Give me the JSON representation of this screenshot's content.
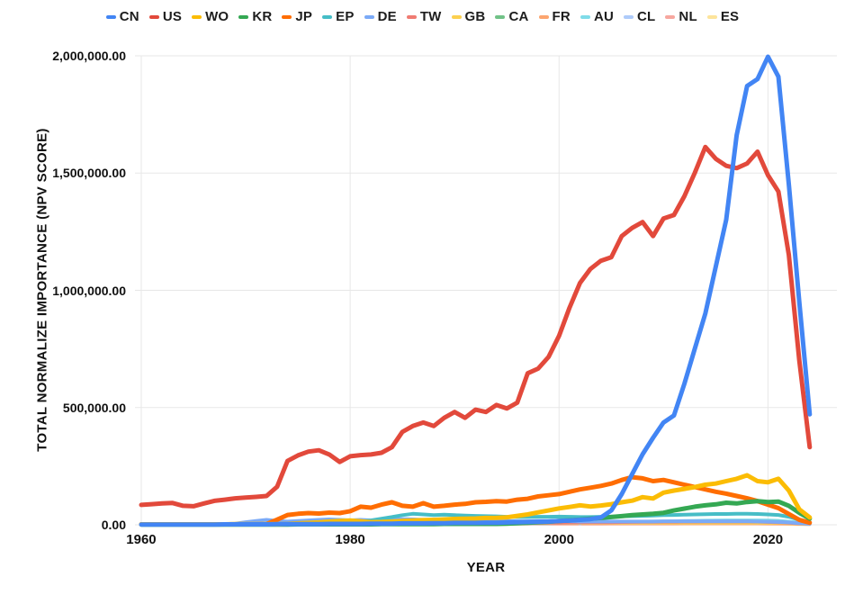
{
  "chart_data": {
    "type": "line",
    "title": "",
    "xlabel": "YEAR",
    "ylabel": "TOTAL NORMALIZE IMPORTANCE (NPV SCORE)",
    "legend_position": "top",
    "grid": true,
    "ylim": [
      0,
      2000000
    ],
    "xlim": [
      1959.4,
      2026.6
    ],
    "x_ticks": [
      {
        "value": 1960,
        "label": "1960"
      },
      {
        "value": 1980,
        "label": "1980"
      },
      {
        "value": 2000,
        "label": "2000"
      },
      {
        "value": 2020,
        "label": "2020"
      }
    ],
    "y_ticks": [
      {
        "value": 0,
        "label": "0.00"
      },
      {
        "value": 500000,
        "label": "500,000.00"
      },
      {
        "value": 1000000,
        "label": "1,000,000.00"
      },
      {
        "value": 1500000,
        "label": "1,500,000.00"
      },
      {
        "value": 2000000,
        "label": "2,000,000.00"
      }
    ],
    "x": [
      1960,
      1961,
      1962,
      1963,
      1964,
      1965,
      1966,
      1967,
      1968,
      1969,
      1970,
      1971,
      1972,
      1973,
      1974,
      1975,
      1976,
      1977,
      1978,
      1979,
      1980,
      1981,
      1982,
      1983,
      1984,
      1985,
      1986,
      1987,
      1988,
      1989,
      1990,
      1991,
      1992,
      1993,
      1994,
      1995,
      1996,
      1997,
      1998,
      1999,
      2000,
      2001,
      2002,
      2003,
      2004,
      2005,
      2006,
      2007,
      2008,
      2009,
      2010,
      2011,
      2012,
      2013,
      2014,
      2015,
      2016,
      2017,
      2018,
      2019,
      2020,
      2021,
      2022,
      2023,
      2024
    ],
    "series": [
      {
        "name": "CN",
        "color": "#4285F4",
        "width": 5,
        "values": [
          1000,
          1000,
          1000,
          1000,
          1000,
          1000,
          1000,
          1000,
          2000,
          2000,
          2000,
          2000,
          2000,
          3000,
          3000,
          3000,
          3000,
          3000,
          4000,
          4000,
          4000,
          4000,
          5000,
          5000,
          5000,
          6000,
          6000,
          6000,
          7000,
          7000,
          8000,
          8000,
          8000,
          9000,
          9000,
          10000,
          11000,
          12000,
          13000,
          14000,
          16000,
          18000,
          21000,
          24000,
          31000,
          61000,
          131000,
          216000,
          301000,
          371000,
          436000,
          466000,
          601000,
          751000,
          901000,
          1101000,
          1301000,
          1661000,
          1871000,
          1901000,
          1996000,
          1911000,
          1451000,
          951000,
          471000
        ]
      },
      {
        "name": "US",
        "color": "#E2493B",
        "width": 5,
        "values": [
          85000,
          88000,
          91000,
          93000,
          81000,
          79000,
          91000,
          102000,
          107000,
          113000,
          116000,
          119000,
          123000,
          162000,
          272000,
          296000,
          312000,
          318000,
          300000,
          268000,
          292000,
          297000,
          300000,
          307000,
          331000,
          396000,
          421000,
          436000,
          421000,
          456000,
          481000,
          456000,
          491000,
          481000,
          511000,
          496000,
          521000,
          646000,
          666000,
          716000,
          806000,
          926000,
          1031000,
          1091000,
          1126000,
          1141000,
          1231000,
          1266000,
          1291000,
          1231000,
          1306000,
          1321000,
          1401000,
          1501000,
          1611000,
          1561000,
          1531000,
          1521000,
          1541000,
          1591000,
          1491000,
          1421000,
          1151000,
          701000,
          331000
        ]
      },
      {
        "name": "WO",
        "color": "#FBBC04",
        "width": 5,
        "values": [
          2000,
          2000,
          2000,
          2000,
          2000,
          2000,
          2000,
          2000,
          2000,
          3000,
          3000,
          3000,
          3000,
          3000,
          4000,
          6000,
          8000,
          10000,
          14000,
          16000,
          18000,
          15000,
          11000,
          12000,
          14000,
          16000,
          18000,
          20000,
          21000,
          23000,
          25000,
          26000,
          27000,
          29000,
          30000,
          32000,
          38000,
          44000,
          53000,
          61000,
          70000,
          76000,
          83000,
          78000,
          82000,
          88000,
          96000,
          103000,
          118000,
          112000,
          137000,
          146000,
          153000,
          161000,
          171000,
          176000,
          186000,
          196000,
          211000,
          186000,
          181000,
          196000,
          146000,
          66000,
          31000
        ]
      },
      {
        "name": "KR",
        "color": "#34A853",
        "width": 5,
        "values": [
          1000,
          1000,
          1000,
          1000,
          1000,
          1000,
          1000,
          1000,
          1000,
          1000,
          1000,
          1000,
          1000,
          1000,
          1000,
          2000,
          2000,
          2000,
          2000,
          2000,
          2000,
          2000,
          2000,
          3000,
          3000,
          3000,
          3000,
          3000,
          3000,
          4000,
          4000,
          4000,
          4000,
          4000,
          4000,
          5000,
          7000,
          9000,
          11000,
          13000,
          16000,
          19000,
          22000,
          26000,
          29000,
          33000,
          37000,
          41000,
          44000,
          47000,
          51000,
          61000,
          69000,
          77000,
          83000,
          87000,
          94000,
          91000,
          97000,
          101000,
          97000,
          99000,
          81000,
          51000,
          26000
        ]
      },
      {
        "name": "JP",
        "color": "#FF6D01",
        "width": 5,
        "values": [
          2000,
          2000,
          2000,
          2000,
          2000,
          2000,
          2000,
          2000,
          2000,
          2000,
          2000,
          2000,
          3000,
          22000,
          42000,
          47000,
          50000,
          48000,
          52000,
          50000,
          58000,
          77000,
          73000,
          86000,
          96000,
          81000,
          77000,
          92000,
          77000,
          81000,
          86000,
          89000,
          96000,
          98000,
          101000,
          99000,
          107000,
          111000,
          121000,
          126000,
          131000,
          141000,
          151000,
          158000,
          166000,
          176000,
          191000,
          203000,
          198000,
          186000,
          191000,
          181000,
          171000,
          161000,
          151000,
          141000,
          133000,
          123000,
          113000,
          101000,
          86000,
          71000,
          46000,
          21000,
          9000
        ]
      },
      {
        "name": "EP",
        "color": "#46BDC6",
        "width": 4,
        "values": [
          0,
          0,
          0,
          0,
          0,
          0,
          0,
          0,
          0,
          0,
          0,
          0,
          0,
          0,
          0,
          0,
          0,
          0,
          1000,
          4000,
          9000,
          14000,
          19000,
          26000,
          33000,
          41000,
          47000,
          44000,
          41000,
          43000,
          41000,
          39000,
          38000,
          37000,
          36000,
          34000,
          33000,
          33000,
          34000,
          34000,
          35000,
          34000,
          33000,
          33000,
          34000,
          35000,
          36000,
          37000,
          38000,
          39000,
          41000,
          42000,
          43000,
          44000,
          45000,
          46000,
          46000,
          47000,
          47000,
          46000,
          44000,
          42000,
          34000,
          21000,
          11000
        ]
      },
      {
        "name": "DE",
        "color": "#7BAAF7",
        "width": 4,
        "values": [
          1000,
          1000,
          1000,
          1000,
          1000,
          1000,
          1000,
          2000,
          3000,
          5000,
          11000,
          16000,
          21000,
          16000,
          14000,
          16000,
          19000,
          21000,
          23000,
          21000,
          19000,
          21000,
          19000,
          21000,
          23000,
          24000,
          23000,
          21000,
          20000,
          19000,
          21000,
          19000,
          18000,
          17000,
          16000,
          16000,
          15000,
          15000,
          16000,
          16000,
          16000,
          15000,
          14000,
          14000,
          14000,
          14000,
          14000,
          14000,
          14000,
          14000,
          15000,
          15000,
          15000,
          15000,
          15000,
          15000,
          15000,
          15000,
          15000,
          14000,
          13000,
          12000,
          10000,
          7000,
          4000
        ]
      },
      {
        "name": "TW",
        "color": "#F07B72",
        "width": 3,
        "values": [
          500,
          500,
          500,
          500,
          500,
          500,
          500,
          500,
          500,
          500,
          500,
          500,
          500,
          500,
          500,
          500,
          500,
          500,
          500,
          500,
          500,
          500,
          500,
          1000,
          1000,
          1000,
          1000,
          1000,
          1500,
          1500,
          2000,
          2500,
          3000,
          3500,
          4000,
          4000,
          5000,
          5500,
          6000,
          6500,
          7000,
          7500,
          8000,
          8500,
          9000,
          9000,
          9500,
          10000,
          10500,
          10500,
          11000,
          11000,
          11500,
          11500,
          12000,
          12000,
          12000,
          12000,
          12000,
          11500,
          10000,
          9000,
          7000,
          4000,
          3000
        ]
      },
      {
        "name": "GB",
        "color": "#FCD04F",
        "width": 3,
        "values": [
          2000,
          2000,
          2000,
          2000,
          2000,
          2000,
          2000,
          2000,
          2500,
          2500,
          3000,
          3500,
          4000,
          6000,
          8000,
          9000,
          11000,
          13000,
          16000,
          14000,
          16000,
          13000,
          9000,
          11000,
          9000,
          8000,
          8000,
          8000,
          7000,
          7000,
          7000,
          7000,
          7000,
          7000,
          7000,
          7000,
          7000,
          7000,
          7000,
          7000,
          7000,
          7000,
          7000,
          7000,
          7000,
          7000,
          7000,
          7000,
          7000,
          7000,
          7000,
          7000,
          7000,
          7000,
          7000,
          7000,
          7000,
          7000,
          7000,
          7000,
          6000,
          6000,
          5000,
          3000,
          2000
        ]
      },
      {
        "name": "CA",
        "color": "#71C287",
        "width": 3,
        "values": [
          1000,
          1000,
          1000,
          1000,
          1000,
          1000,
          1000,
          1000,
          1000,
          1000,
          1000,
          1000,
          1000,
          1000,
          1500,
          1500,
          1500,
          2000,
          2000,
          2000,
          2000,
          2500,
          2500,
          3000,
          3000,
          3500,
          3500,
          4000,
          4000,
          4000,
          4000,
          4500,
          5000,
          5500,
          6000,
          6500,
          7000,
          7000,
          7500,
          8000,
          8000,
          8500,
          9000,
          9500,
          10000,
          10500,
          11000,
          11500,
          12000,
          12500,
          13000,
          13500,
          14000,
          14500,
          15000,
          15000,
          15500,
          16000,
          16000,
          15000,
          14500,
          14000,
          11000,
          7000,
          4000
        ]
      },
      {
        "name": "FR",
        "color": "#FCA56F",
        "width": 3,
        "values": [
          1000,
          1000,
          1000,
          1000,
          1000,
          1000,
          1500,
          1500,
          2000,
          2500,
          3000,
          3500,
          4000,
          5000,
          6000,
          6000,
          6500,
          7000,
          7500,
          7500,
          8000,
          8500,
          8500,
          9000,
          9000,
          9000,
          9000,
          9000,
          9000,
          9000,
          9000,
          9000,
          8500,
          8500,
          8000,
          8000,
          8000,
          8000,
          8000,
          8000,
          8000,
          8000,
          8000,
          8000,
          8000,
          8000,
          8000,
          8000,
          8000,
          8000,
          8000,
          8000,
          8000,
          8000,
          8000,
          8000,
          8000,
          8000,
          7500,
          7500,
          7000,
          6500,
          5000,
          3000,
          2000
        ]
      },
      {
        "name": "AU",
        "color": "#7FDBE8",
        "width": 4,
        "values": [
          500,
          500,
          500,
          500,
          500,
          500,
          500,
          500,
          500,
          500,
          500,
          500,
          500,
          500,
          1000,
          1000,
          1000,
          1000,
          1000,
          1000,
          1000,
          1500,
          1500,
          2000,
          2000,
          2500,
          3000,
          3000,
          3000,
          3000,
          3000,
          3500,
          4000,
          4500,
          5000,
          5000,
          5500,
          6000,
          6500,
          7000,
          8000,
          8500,
          9000,
          9500,
          10000,
          11000,
          12000,
          12500,
          13000,
          14000,
          14000,
          15000,
          16000,
          17000,
          17500,
          18000,
          19000,
          19000,
          19000,
          19000,
          18000,
          17000,
          13000,
          9000,
          5000
        ]
      },
      {
        "name": "CL",
        "color": "#AECBFA",
        "width": 3,
        "values": [
          null,
          null,
          null,
          null,
          null,
          null,
          null,
          null,
          null,
          null,
          null,
          null,
          null,
          null,
          null,
          null,
          null,
          null,
          null,
          null,
          null,
          null,
          null,
          null,
          null,
          null,
          null,
          null,
          null,
          null,
          null,
          null,
          null,
          null,
          null,
          null,
          null,
          null,
          null,
          null,
          null,
          null,
          13000,
          null,
          null,
          null,
          null,
          null,
          null,
          null,
          null,
          null,
          null,
          null,
          null,
          null,
          null,
          null,
          null,
          null,
          null,
          null,
          null,
          null,
          null
        ]
      },
      {
        "name": "NL",
        "color": "#F7A79F",
        "width": 3,
        "values": [
          500,
          500,
          500,
          500,
          500,
          500,
          500,
          500,
          500,
          500,
          1000,
          1000,
          1000,
          1500,
          2000,
          2000,
          2000,
          2500,
          2500,
          2500,
          3000,
          3000,
          3000,
          3000,
          3000,
          3000,
          3000,
          3000,
          3000,
          3000,
          3000,
          3000,
          3000,
          3000,
          3000,
          3000,
          3000,
          3000,
          3000,
          3000,
          3000,
          3000,
          3000,
          3000,
          3000,
          3500,
          3500,
          3500,
          3500,
          3500,
          3500,
          3500,
          4000,
          4000,
          4000,
          4000,
          4000,
          4000,
          4000,
          4000,
          3500,
          3500,
          3000,
          2000,
          1000
        ]
      },
      {
        "name": "ES",
        "color": "#FDE49B",
        "width": 3,
        "values": [
          2500,
          2500,
          2500,
          2500,
          2500,
          2500,
          2500,
          2500,
          2500,
          2500,
          2500,
          2500,
          2500,
          2500,
          2500,
          2500,
          2500,
          2500,
          2500,
          2500,
          2500,
          2500,
          2500,
          2500,
          2500,
          2500,
          2500,
          2500,
          2500,
          2500,
          2500,
          2500,
          2500,
          2500,
          2500,
          2500,
          2500,
          2500,
          2500,
          2500,
          2500,
          2500,
          2500,
          2500,
          2500,
          2500,
          2500,
          2500,
          2500,
          2500,
          2500,
          2500,
          2500,
          2500,
          2500,
          2500,
          2500,
          2500,
          2500,
          2500,
          2200,
          2000,
          1500,
          1000,
          800
        ]
      }
    ]
  },
  "colors": {
    "grid": "#E7E7E7",
    "text": "#111111",
    "background": "#FFFFFF"
  }
}
